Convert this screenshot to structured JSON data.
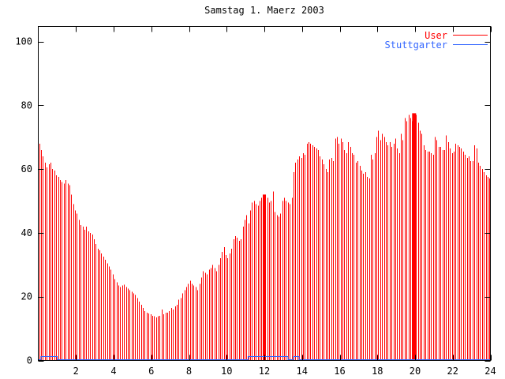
{
  "window": {
    "background": "#ffffff"
  },
  "chart_data": {
    "type": "bar",
    "title": "Samstag 1. Maerz 2003",
    "style_note": "gnuplot-style impulse plot, black 1px border, ticks mirrored on all four sides",
    "xlabel": "",
    "ylabel": "",
    "xlim": [
      0,
      24
    ],
    "ylim": [
      0,
      105
    ],
    "xticks": [
      2,
      4,
      6,
      8,
      10,
      12,
      14,
      16,
      18,
      20,
      22,
      24
    ],
    "yticks": [
      0,
      20,
      40,
      60,
      80,
      100
    ],
    "grid": false,
    "legend_position": "top-right-inside",
    "series": [
      {
        "name": "User",
        "color": "#ff0000",
        "style": "impulses",
        "x_start": 0.05,
        "x_step": 0.1,
        "values": [
          68,
          66,
          64,
          62,
          60.5,
          61.5,
          62,
          60,
          59.5,
          58,
          57.5,
          56.5,
          56,
          55.5,
          56.5,
          55.5,
          55,
          52,
          49,
          47,
          46,
          44,
          42.5,
          42,
          41,
          42,
          40.5,
          40,
          39.5,
          38,
          36.5,
          35,
          34.5,
          33.5,
          32.5,
          31.5,
          30.5,
          29.5,
          28.5,
          27,
          25.5,
          24.5,
          23.5,
          23,
          23.5,
          23.8,
          23,
          22.5,
          22,
          21.5,
          21,
          20.5,
          19.5,
          18.5,
          17.5,
          16.5,
          15.5,
          15,
          14.7,
          14.5,
          14,
          13.8,
          13.5,
          13.8,
          14,
          16,
          14.5,
          15,
          15,
          15.5,
          16.5,
          16,
          17,
          17.5,
          19,
          19.5,
          21,
          22,
          23,
          24,
          25,
          24,
          23.5,
          23,
          22,
          24,
          26,
          28,
          27.5,
          27,
          28.5,
          29,
          30,
          29,
          28,
          30,
          32,
          34,
          35.5,
          33,
          32,
          33.5,
          35,
          38,
          39,
          38.5,
          37.5,
          38,
          42,
          44,
          45.5,
          43,
          47,
          49.5,
          50,
          49,
          48.5,
          50,
          51,
          50,
          52,
          51,
          49.5,
          50,
          53,
          46.5,
          45.5,
          45,
          46,
          50,
          51,
          50,
          49.5,
          49,
          51,
          59,
          62,
          63,
          64,
          63.5,
          65,
          64.5,
          68,
          68.5,
          68,
          67.5,
          67,
          66.5,
          66,
          64,
          63,
          61.5,
          60,
          59,
          63,
          63.5,
          62.5,
          69.5,
          70,
          68,
          69.5,
          68.5,
          66,
          65,
          68.5,
          67,
          65,
          64.5,
          62,
          62.5,
          61,
          59.5,
          58.5,
          59,
          57.5,
          57,
          64.5,
          63,
          65,
          70,
          72,
          69,
          71,
          70,
          68.5,
          67.5,
          68.5,
          67,
          68,
          69.5,
          66.5,
          65,
          71,
          69,
          76,
          75,
          77,
          76,
          75,
          77.5,
          77,
          74.5,
          72,
          71,
          67.5,
          66,
          65.5,
          65.5,
          65,
          64.5,
          70,
          69,
          67,
          67,
          66,
          66,
          70.5,
          68.5,
          66.5,
          65,
          65.5,
          68,
          67.5,
          67,
          66.5,
          65.5,
          64.5,
          63.5,
          64,
          62.5,
          62.5,
          67.5,
          66.5,
          62,
          61,
          60,
          59,
          58,
          57.5,
          57
        ]
      },
      {
        "name": "Stuttgarter",
        "color": "#3366ff",
        "style": "step-line",
        "segments": [
          {
            "from": 0.0,
            "to": 0.15,
            "value": 0.4
          },
          {
            "from": 0.15,
            "to": 1.0,
            "value": 1.3
          },
          {
            "from": 1.0,
            "to": 11.15,
            "value": 0.4
          },
          {
            "from": 11.15,
            "to": 13.25,
            "value": 1.3
          },
          {
            "from": 13.25,
            "to": 13.55,
            "value": 0.4
          },
          {
            "from": 13.55,
            "to": 13.85,
            "value": 1.3
          },
          {
            "from": 13.85,
            "to": 24.0,
            "value": 0.4
          }
        ]
      }
    ],
    "dense_columns": [
      {
        "x": 12.0,
        "width": 4,
        "value": 52
      },
      {
        "x": 19.95,
        "width": 5,
        "value": 77.5
      }
    ]
  },
  "legend": [
    {
      "label": "User",
      "color": "#ff0000"
    },
    {
      "label": "Stuttgarter",
      "color": "#3366ff"
    }
  ],
  "colors": {
    "border": "#000000",
    "text": "#000000",
    "user_series": "#ff0000",
    "stuttgarter_series": "#3366ff"
  }
}
